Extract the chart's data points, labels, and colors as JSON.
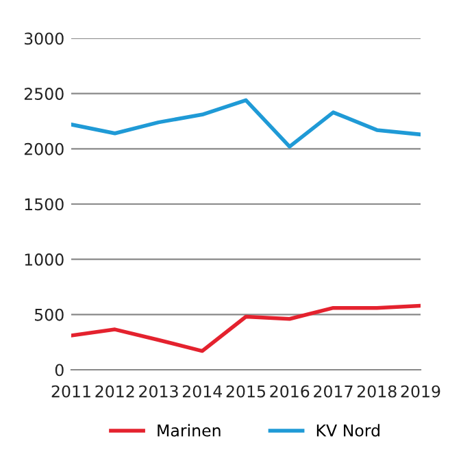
{
  "chart_data": {
    "type": "line",
    "categories": [
      "2011",
      "2012",
      "2013",
      "2014",
      "2015",
      "2016",
      "2017",
      "2018",
      "2019"
    ],
    "series": [
      {
        "name": "Marinen",
        "color": "#e4222e",
        "values": [
          310,
          365,
          270,
          170,
          480,
          460,
          560,
          560,
          580
        ]
      },
      {
        "name": "KV Nord",
        "color": "#1f9ad6",
        "values": [
          2220,
          2140,
          2240,
          2310,
          2440,
          2020,
          2330,
          2170,
          2130
        ]
      }
    ],
    "ylim": [
      0,
      3000
    ],
    "yticks": [
      0,
      500,
      1000,
      1500,
      2000,
      2500,
      3000
    ],
    "grid": "y",
    "legend": "bottom",
    "marker": "none",
    "line_style": "solid"
  }
}
